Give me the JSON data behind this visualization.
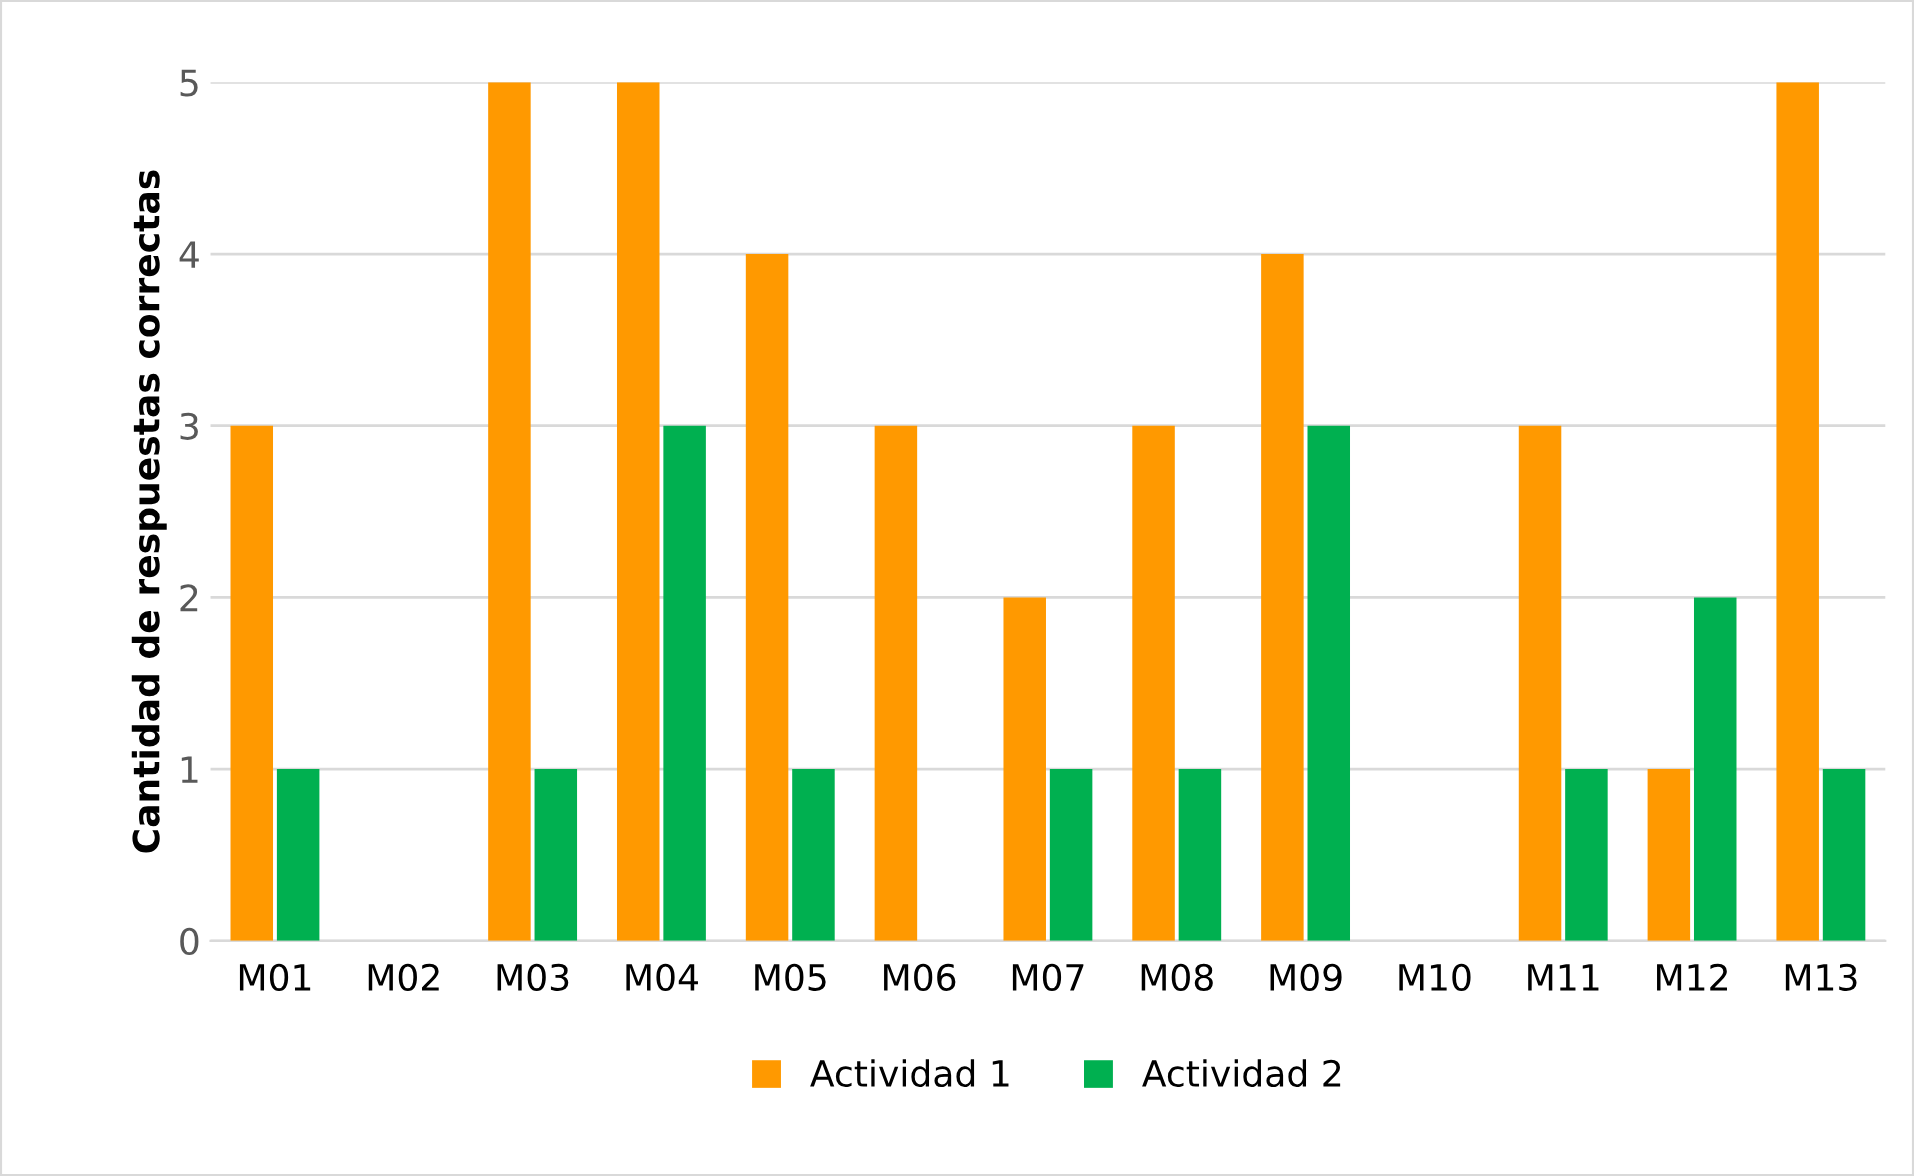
{
  "chart_data": {
    "type": "bar",
    "ylabel": "Cantidad de respuestas correctas",
    "categories": [
      "M01",
      "M02",
      "M03",
      "M04",
      "M05",
      "M06",
      "M07",
      "M08",
      "M09",
      "M10",
      "M11",
      "M12",
      "M13"
    ],
    "series": [
      {
        "name": "Actividad 1",
        "color": "#ff9900",
        "values": [
          3,
          0,
          5,
          5,
          4,
          3,
          2,
          3,
          4,
          0,
          3,
          1,
          5
        ]
      },
      {
        "name": "Actividad 2",
        "color": "#00b050",
        "values": [
          1,
          0,
          1,
          3,
          1,
          0,
          1,
          1,
          3,
          0,
          1,
          2,
          1
        ]
      }
    ],
    "ylim": [
      0,
      5
    ],
    "yticks": [
      0,
      1,
      2,
      3,
      4,
      5
    ],
    "grid": "y",
    "legend": "bottom"
  }
}
